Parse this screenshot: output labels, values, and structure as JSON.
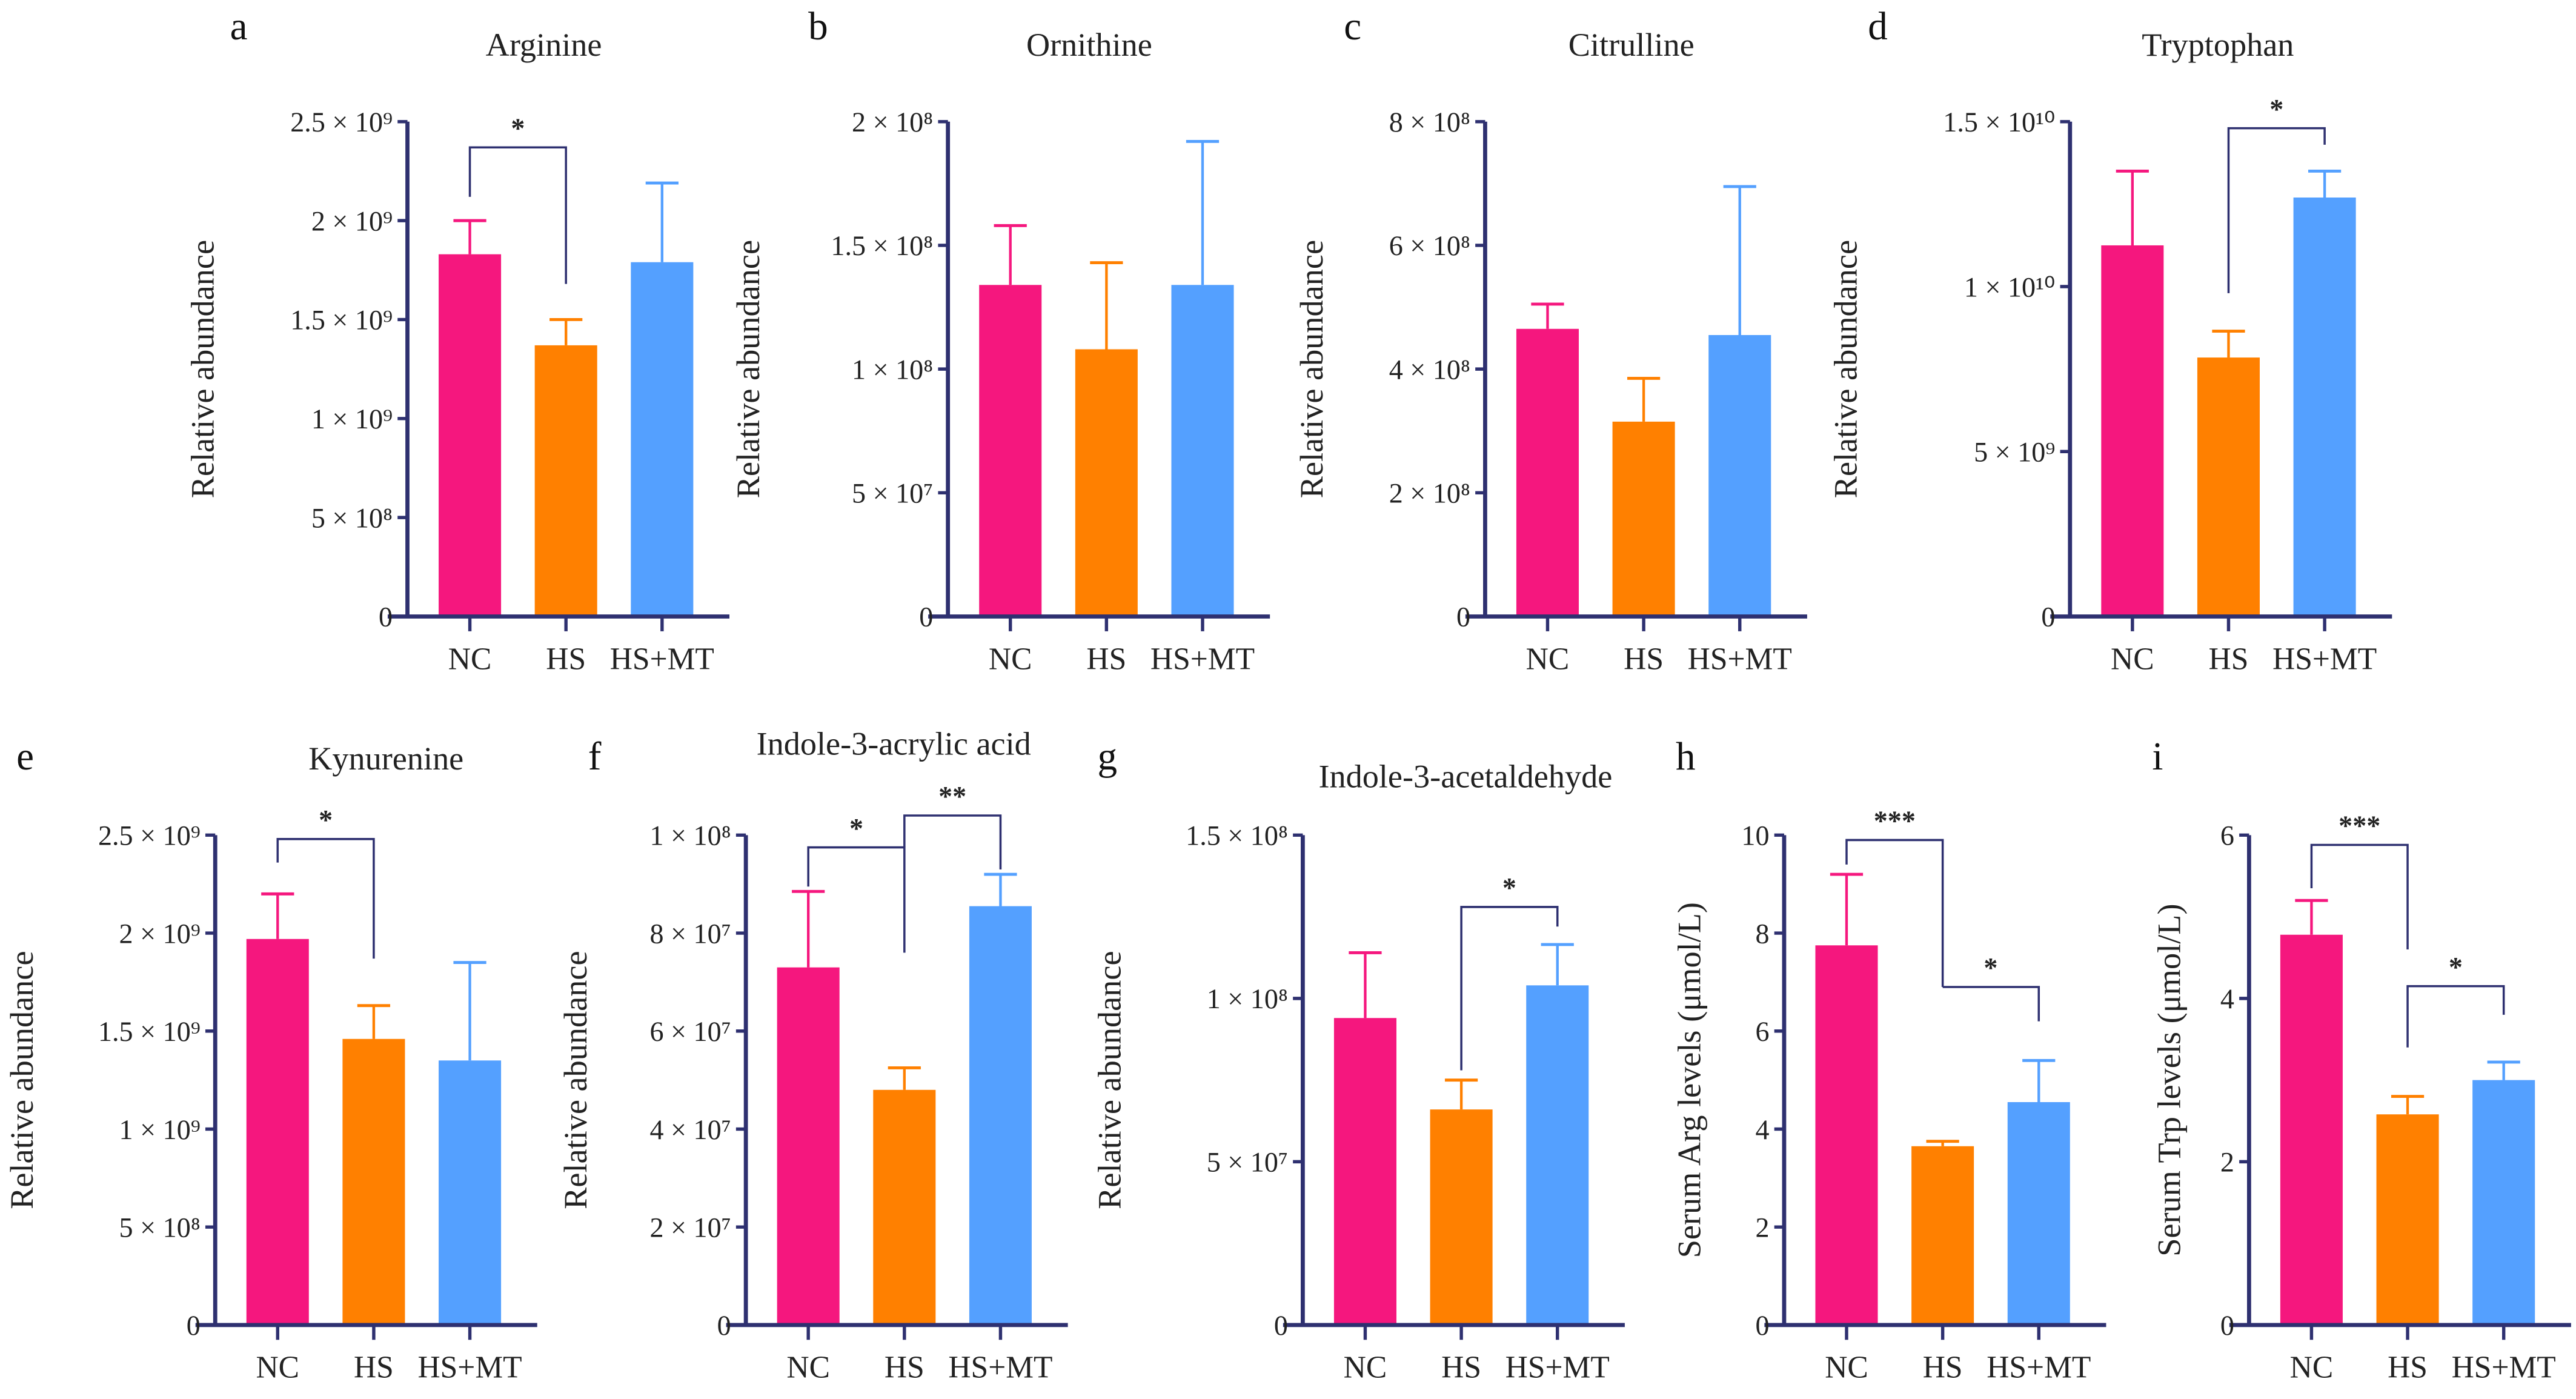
{
  "colors": {
    "NC": "#F5177E",
    "HS": "#FF8000",
    "HS+MT": "#54A0FF",
    "axis": "#2E3070"
  },
  "chart_data": [
    {
      "type": "bar",
      "letter": "a",
      "title": "Arginine",
      "ylabel": "Relative abundance",
      "categories": [
        "NC",
        "HS",
        "HS+MT"
      ],
      "values": [
        1830000000.0,
        1370000000.0,
        1790000000.0
      ],
      "error_top": [
        2000000000.0,
        1500000000.0,
        2190000000.0
      ],
      "ylim": [
        0,
        2500000000.0
      ],
      "ticks": [
        0,
        500000000.0,
        1000000000.0,
        1500000000.0,
        2000000000.0,
        2500000000.0
      ],
      "tick_labels": [
        "0",
        "5 × 10⁸",
        "1 × 10⁹",
        "1.5 × 10⁹",
        "2 × 10⁹",
        "2.5 × 10⁹"
      ],
      "significance": [
        {
          "from": 0,
          "to": 1,
          "label": "*",
          "y": 2370000000.0,
          "left_end": 2120000000.0,
          "right_end": 1680000000.0
        }
      ]
    },
    {
      "type": "bar",
      "letter": "b",
      "title": "Ornithine",
      "ylabel": "Relative abundance",
      "categories": [
        "NC",
        "HS",
        "HS+MT"
      ],
      "values": [
        134000000.0,
        108000000.0,
        134000000.0
      ],
      "error_top": [
        158000000.0,
        143000000.0,
        192000000.0
      ],
      "ylim": [
        0,
        200000000.0
      ],
      "ticks": [
        0,
        50000000.0,
        100000000.0,
        150000000.0,
        200000000.0
      ],
      "tick_labels": [
        "0",
        "5 × 10⁷",
        "1 × 10⁸",
        "1.5 × 10⁸",
        "2 × 10⁸"
      ],
      "significance": []
    },
    {
      "type": "bar",
      "letter": "c",
      "title": "Citrulline",
      "ylabel": "Relative abundance",
      "categories": [
        "NC",
        "HS",
        "HS+MT"
      ],
      "values": [
        465000000.0,
        315000000.0,
        455000000.0
      ],
      "error_top": [
        505000000.0,
        385000000.0,
        695000000.0
      ],
      "ylim": [
        0,
        800000000.0
      ],
      "ticks": [
        0,
        200000000.0,
        400000000.0,
        600000000.0,
        800000000.0
      ],
      "tick_labels": [
        "0",
        "2 × 10⁸",
        "4 × 10⁸",
        "6 × 10⁸",
        "8 × 10⁸"
      ],
      "significance": []
    },
    {
      "type": "bar",
      "letter": "d",
      "title": "Tryptophan",
      "ylabel": "Relative abundance",
      "categories": [
        "NC",
        "HS",
        "HS+MT"
      ],
      "values": [
        11250000000.0,
        7850000000.0,
        12700000000.0
      ],
      "error_top": [
        13500000000.0,
        8650000000.0,
        13500000000.0
      ],
      "ylim": [
        0,
        15000000000.0
      ],
      "ticks": [
        0,
        5000000000.0,
        10000000000.0,
        15000000000.0
      ],
      "tick_labels": [
        "0",
        "5 × 10⁹",
        "1 × 10¹⁰",
        "1.5 × 10¹⁰"
      ],
      "significance": [
        {
          "from": 1,
          "to": 2,
          "label": "*",
          "y": 14800000000.0,
          "left_end": 9800000000.0,
          "right_end": 14300000000.0
        }
      ]
    },
    {
      "type": "bar",
      "letter": "e",
      "title": "Kynurenine",
      "ylabel": "Relative abundance",
      "categories": [
        "NC",
        "HS",
        "HS+MT"
      ],
      "values": [
        1970000000.0,
        1460000000.0,
        1350000000.0
      ],
      "error_top": [
        2200000000.0,
        1630000000.0,
        1850000000.0
      ],
      "ylim": [
        0,
        2500000000.0
      ],
      "ticks": [
        0,
        500000000.0,
        1000000000.0,
        1500000000.0,
        2000000000.0,
        2500000000.0
      ],
      "tick_labels": [
        "0",
        "5 × 10⁸",
        "1 × 10⁹",
        "1.5 × 10⁹",
        "2 × 10⁹",
        "2.5 × 10⁹"
      ],
      "significance": [
        {
          "from": 0,
          "to": 1,
          "label": "*",
          "y": 2480000000.0,
          "left_end": 2360000000.0,
          "right_end": 1870000000.0
        }
      ]
    },
    {
      "type": "bar",
      "letter": "f",
      "title": "Indole-3-acrylic acid",
      "ylabel": "Relative abundance",
      "categories": [
        "NC",
        "HS",
        "HS+MT"
      ],
      "values": [
        73000000.0,
        48000000.0,
        85500000.0
      ],
      "error_top": [
        88500000.0,
        52500000.0,
        92000000.0
      ],
      "ylim": [
        0,
        100000000.0
      ],
      "ticks": [
        0,
        20000000.0,
        40000000.0,
        60000000.0,
        80000000.0,
        100000000.0
      ],
      "tick_labels": [
        "0",
        "2 × 10⁷",
        "4 × 10⁷",
        "6 × 10⁷",
        "8 × 10⁷",
        "1 × 10⁸"
      ],
      "significance": [
        {
          "from": 0,
          "to": 1,
          "label": "*",
          "y": 97500000.0,
          "left_end": 89500000.0,
          "right_end": 76000000.0
        },
        {
          "from": 1,
          "to": 2,
          "label": "**",
          "y": 104000000.0,
          "left_end": 97500000.0,
          "right_end": 93000000.0
        }
      ]
    },
    {
      "type": "bar",
      "letter": "g",
      "title": "Indole-3-acetaldehyde",
      "ylabel": "Relative abundance",
      "categories": [
        "NC",
        "HS",
        "HS+MT"
      ],
      "values": [
        94000000.0,
        66000000.0,
        104000000.0
      ],
      "error_top": [
        114000000.0,
        75000000.0,
        116500000.0
      ],
      "ylim": [
        0,
        150000000.0
      ],
      "ticks": [
        0,
        50000000.0,
        100000000.0,
        150000000.0
      ],
      "tick_labels": [
        "0",
        "5 × 10⁷",
        "1 × 10⁸",
        "1.5 × 10⁸"
      ],
      "significance": [
        {
          "from": 1,
          "to": 2,
          "label": "*",
          "y": 128000000.0,
          "left_end": 78000000.0,
          "right_end": 122000000.0
        }
      ]
    },
    {
      "type": "bar",
      "letter": "h",
      "title": "",
      "ylabel": "Serum Arg levels (μmol/L)",
      "categories": [
        "NC",
        "HS",
        "HS+MT"
      ],
      "values": [
        7.75,
        3.65,
        4.55
      ],
      "error_top": [
        9.2,
        3.75,
        5.4
      ],
      "ylim": [
        0,
        10
      ],
      "ticks": [
        0,
        2,
        4,
        6,
        8,
        10
      ],
      "tick_labels": [
        "0",
        "2",
        "4",
        "6",
        "8",
        "10"
      ],
      "significance": [
        {
          "from": 0,
          "to": 1,
          "label": "***",
          "y": 9.9,
          "left_end": 9.4,
          "right_end": 6.9
        },
        {
          "from": 1,
          "to": 2,
          "label": "*",
          "y": 6.9,
          "left_end": 6.9,
          "right_end": 6.2
        }
      ]
    },
    {
      "type": "bar",
      "letter": "i",
      "title": "",
      "ylabel": "Serum Trp levels (μmol/L)",
      "categories": [
        "NC",
        "HS",
        "HS+MT"
      ],
      "values": [
        4.78,
        2.58,
        3.0
      ],
      "error_top": [
        5.2,
        2.8,
        3.22
      ],
      "ylim": [
        0,
        6
      ],
      "ticks": [
        0,
        2,
        4,
        6
      ],
      "tick_labels": [
        "0",
        "2",
        "4",
        "6"
      ],
      "significance": [
        {
          "from": 0,
          "to": 1,
          "label": "***",
          "y": 5.88,
          "left_end": 5.35,
          "right_end": 4.6
        },
        {
          "from": 1,
          "to": 2,
          "label": "*",
          "y": 4.15,
          "left_end": 3.4,
          "right_end": 3.8
        }
      ]
    }
  ]
}
